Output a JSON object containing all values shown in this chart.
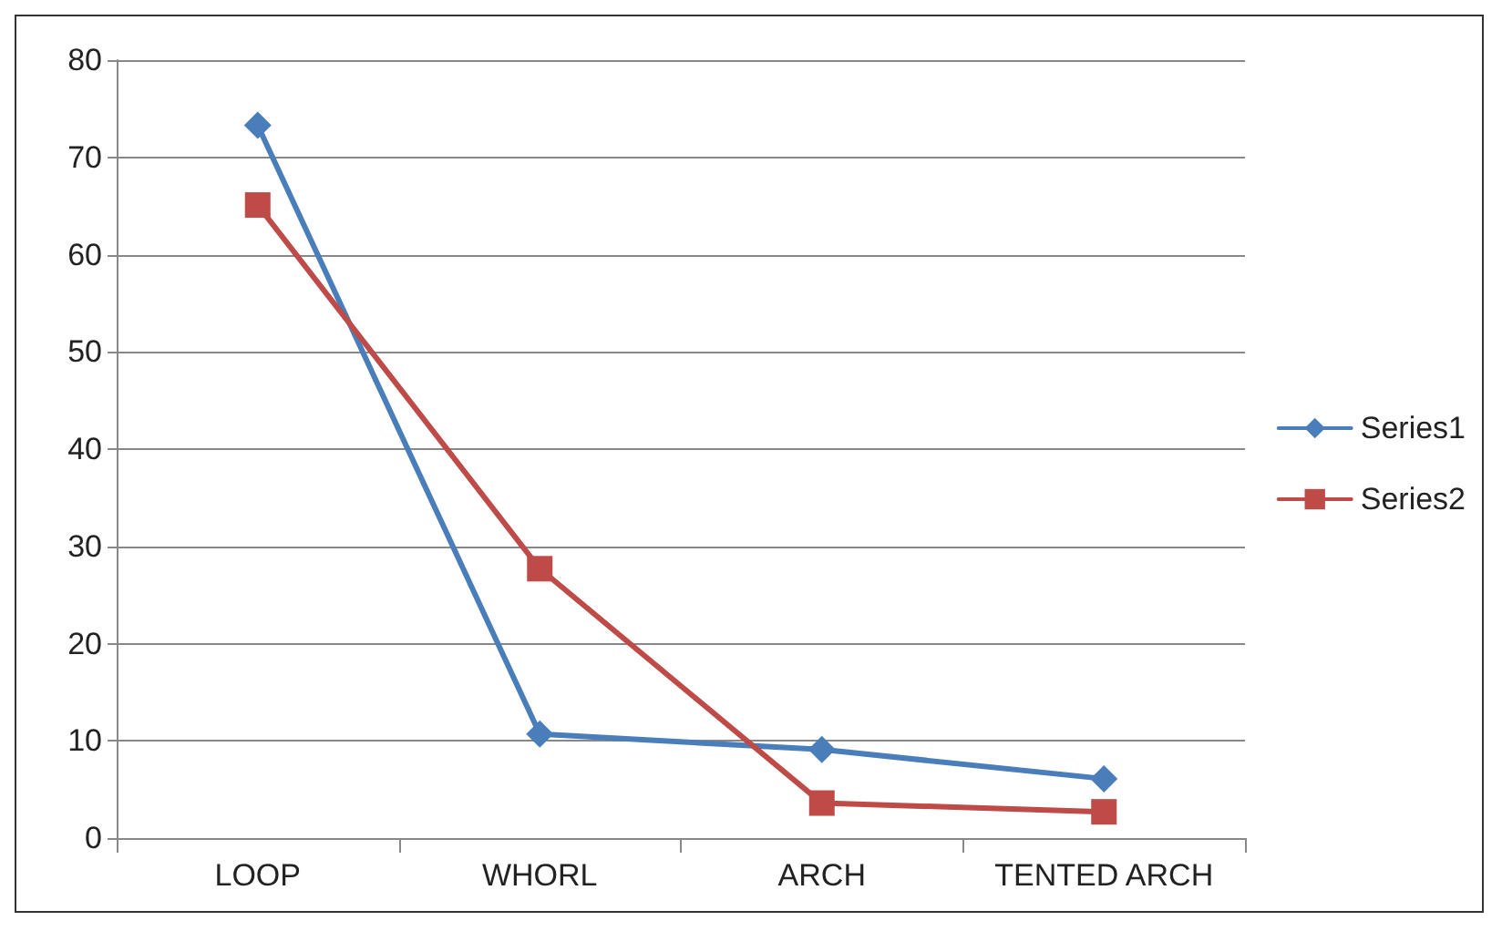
{
  "chart_data": {
    "type": "line",
    "categories": [
      "LOOP",
      "WHORL",
      "ARCH",
      "TENTED ARCH"
    ],
    "series": [
      {
        "name": "Series1",
        "color": "#4a7ebb",
        "marker": "diamond",
        "values": [
          73.3,
          10.7,
          9.1,
          6.1
        ]
      },
      {
        "name": "Series2",
        "color": "#be4b48",
        "marker": "square",
        "values": [
          65.1,
          27.7,
          3.6,
          2.7
        ]
      }
    ],
    "ylim": [
      0,
      80
    ],
    "yticks": [
      0,
      10,
      20,
      30,
      40,
      50,
      60,
      70,
      80
    ],
    "grid": "y",
    "legend": "right",
    "line_style": "solid"
  }
}
